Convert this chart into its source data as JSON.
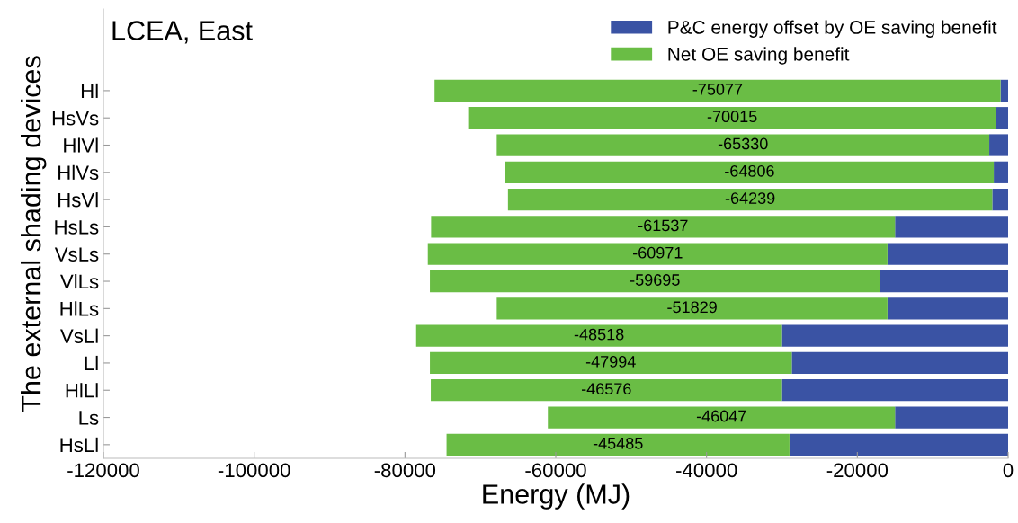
{
  "chart_data": {
    "type": "bar",
    "orientation": "horizontal",
    "stacked": true,
    "title": "LCEA, East",
    "xlabel": "Energy (MJ)",
    "ylabel": "The external shading devices",
    "categories": [
      "Hl",
      "HsVs",
      "HlVl",
      "HlVs",
      "HsVl",
      "HsLs",
      "VsLs",
      "VlLs",
      "HlLs",
      "VsLl",
      "Ll",
      "HlLl",
      "Ls",
      "HsLl"
    ],
    "series": [
      {
        "name": "P&C energy offset by OE saving benefit",
        "color": "#3a53a4",
        "values": [
          -1000,
          -1600,
          -2500,
          -1900,
          -2100,
          -15000,
          -16000,
          -17000,
          -16000,
          -30000,
          -28700,
          -30000,
          -15000,
          -29000
        ]
      },
      {
        "name": "Net OE saving benefit",
        "color": "#6abd45",
        "values": [
          -75077,
          -70015,
          -65330,
          -64806,
          -64239,
          -61537,
          -60971,
          -59695,
          -51829,
          -48518,
          -47994,
          -46576,
          -46047,
          -45485
        ],
        "value_labels": [
          "-75077",
          "-70015",
          "-65330",
          "-64806",
          "-64239",
          "-61537",
          "-60971",
          "-59695",
          "-51829",
          "-48518",
          "-47994",
          "-46576",
          "-46047",
          "-45485"
        ]
      }
    ],
    "xlim": [
      -120000,
      0
    ],
    "xticks": [
      -120000,
      -100000,
      -80000,
      -60000,
      -40000,
      -20000,
      0
    ],
    "grid": false,
    "legend": "top right"
  }
}
